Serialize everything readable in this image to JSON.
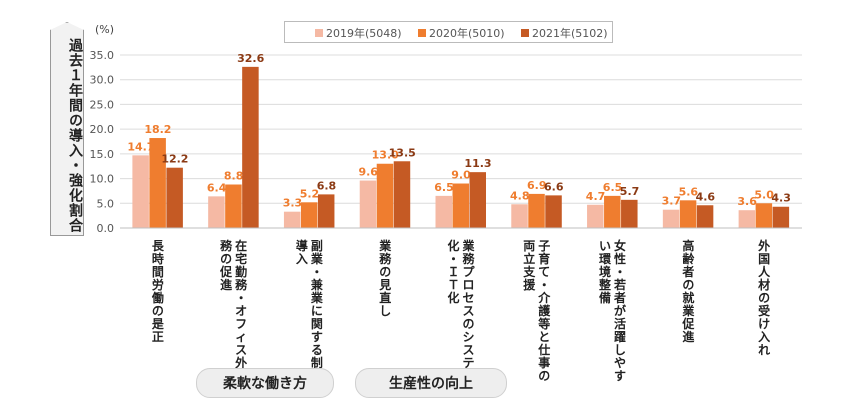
{
  "y_axis_label": "過去１年間の導入・強化割合",
  "unit": "(%)",
  "legend": [
    {
      "label": "2019年(5048)",
      "color": "#f5b9a4"
    },
    {
      "label": "2020年(5010)",
      "color": "#ef7d2f"
    },
    {
      "label": "2021年(5102)",
      "color": "#c55a24"
    }
  ],
  "group_labels": [
    "柔軟な働き方",
    "生産性の向上"
  ],
  "chart_data": {
    "type": "bar",
    "categories": [
      "長時間労働の是正",
      "在宅勤務・オフィス外勤務の促進",
      "副業・兼業に関する制度導入",
      "業務の見直し",
      "業務プロセスのシステム化・ＩＴ化",
      "子育て・介護等と仕事の両立支援",
      "女性・若者が活躍しやすい環境整備",
      "高齢者の就業促進",
      "外国人材の受け入れ"
    ],
    "series": [
      {
        "name": "2019年(5048)",
        "values": [
          14.7,
          6.4,
          3.3,
          9.6,
          6.5,
          4.8,
          4.7,
          3.7,
          3.6
        ],
        "color": "#f5b9a4",
        "label_color": "#ef7d2f"
      },
      {
        "name": "2020年(5010)",
        "values": [
          18.2,
          8.8,
          5.2,
          13.0,
          9.0,
          6.9,
          6.5,
          5.6,
          5.0
        ],
        "color": "#ef7d2f",
        "label_color": "#ef7d2f"
      },
      {
        "name": "2021年(5102)",
        "values": [
          12.2,
          32.6,
          6.8,
          13.5,
          11.3,
          6.6,
          5.7,
          4.6,
          4.3
        ],
        "color": "#c55a24",
        "label_color": "#8b3a14"
      }
    ],
    "yticks": [
      "0.0",
      "5.0",
      "10.0",
      "15.0",
      "20.0",
      "25.0",
      "30.0",
      "35.0"
    ],
    "ylim": [
      0,
      35
    ]
  }
}
